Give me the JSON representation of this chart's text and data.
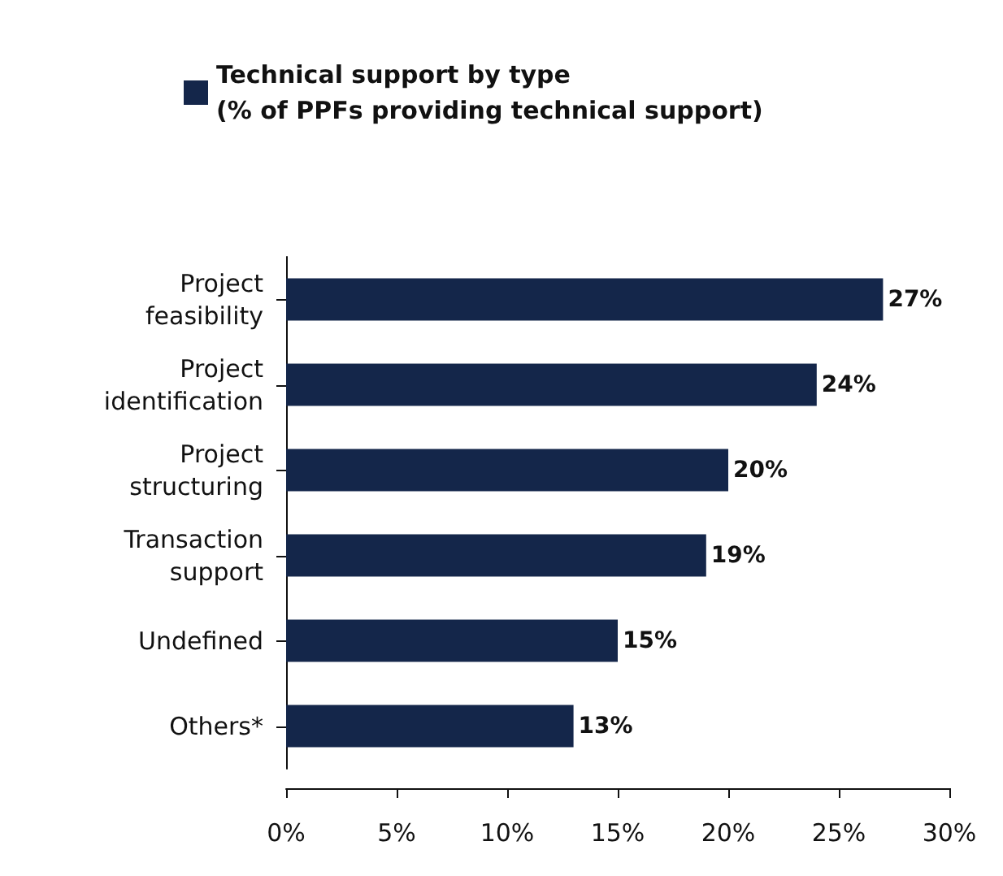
{
  "chart_data": {
    "type": "bar",
    "orientation": "horizontal",
    "categories": [
      "Project\nfeasibility",
      "Project\nidentification",
      "Project\nstructuring",
      "Transaction\nsupport",
      "Undefined",
      "Others*"
    ],
    "series": [
      {
        "name": "Technical support by type\n(% of PPFs providing technical support)",
        "color": "#14264a",
        "values": [
          27,
          24,
          20,
          19,
          15,
          13
        ],
        "value_labels": [
          "27%",
          "24%",
          "20%",
          "19%",
          "15%",
          "13%"
        ]
      }
    ],
    "xlim": [
      0,
      30
    ],
    "xticks": [
      {
        "value": 0,
        "label": "0%"
      },
      {
        "value": 5,
        "label": "5%"
      },
      {
        "value": 10,
        "label": "10%"
      },
      {
        "value": 15,
        "label": "15%"
      },
      {
        "value": 20,
        "label": "20%"
      },
      {
        "value": 25,
        "label": "25%"
      },
      {
        "value": 30,
        "label": "30%"
      }
    ],
    "grid": false,
    "legend": "top"
  }
}
